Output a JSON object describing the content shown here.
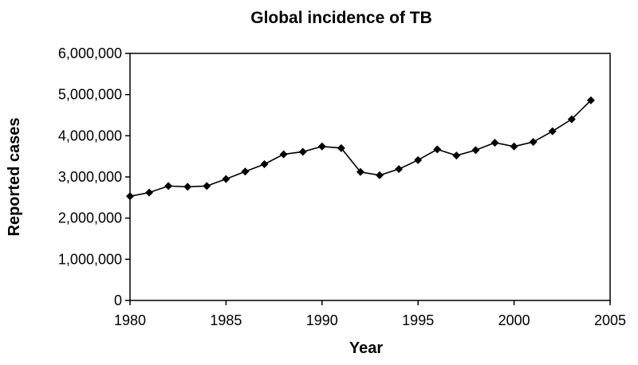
{
  "chart_data": {
    "type": "line",
    "title": "Global incidence of TB",
    "xlabel": "Year",
    "ylabel": "Reported cases",
    "xlim": [
      1980,
      2005
    ],
    "ylim": [
      0,
      6000000
    ],
    "x_ticks": [
      1980,
      1985,
      1990,
      1995,
      2000,
      2005
    ],
    "x_tick_labels": [
      "1980",
      "1985",
      "1990",
      "1995",
      "2000",
      "2005"
    ],
    "y_ticks": [
      0,
      1000000,
      2000000,
      3000000,
      4000000,
      5000000,
      6000000
    ],
    "y_tick_labels": [
      "0",
      "1,000,000",
      "2,000,000",
      "3,000,000",
      "4,000,000",
      "5,000,000",
      "6,000,000"
    ],
    "grid": false,
    "legend": "none",
    "series": [
      {
        "name": "Reported cases",
        "color": "#000000",
        "marker": "diamond",
        "x": [
          1980,
          1981,
          1982,
          1983,
          1984,
          1985,
          1986,
          1987,
          1988,
          1989,
          1990,
          1991,
          1992,
          1993,
          1994,
          1995,
          1996,
          1997,
          1998,
          1999,
          2000,
          2001,
          2002,
          2003,
          2004
        ],
        "values": [
          2530000,
          2620000,
          2780000,
          2760000,
          2780000,
          2950000,
          3130000,
          3310000,
          3550000,
          3610000,
          3740000,
          3700000,
          3120000,
          3040000,
          3190000,
          3410000,
          3670000,
          3520000,
          3650000,
          3830000,
          3740000,
          3850000,
          4110000,
          4400000,
          4860000
        ]
      }
    ]
  }
}
